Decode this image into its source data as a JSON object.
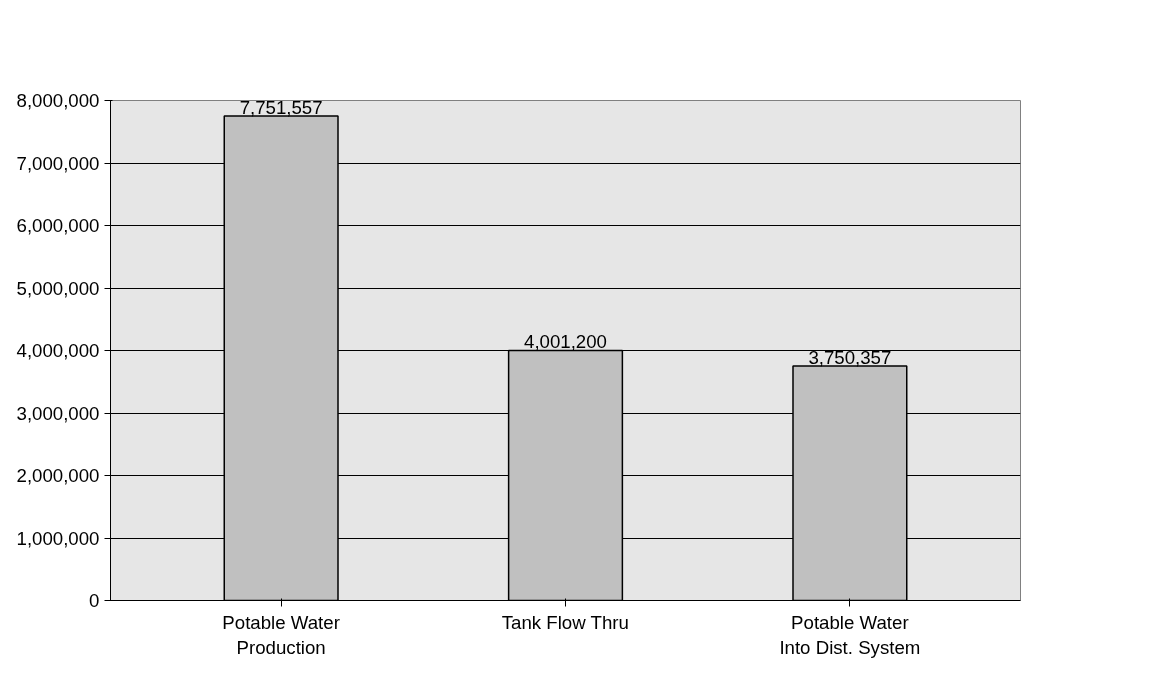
{
  "chart_data": {
    "type": "bar",
    "categories": [
      "Potable Water\nProduction",
      "Tank Flow Thru",
      "Potable Water\nInto Dist. System"
    ],
    "values": [
      7751557,
      4001200,
      3750357
    ],
    "value_labels": [
      "7,751,557",
      "4,001,200",
      "3,750,357"
    ],
    "color": "#c0c0c0",
    "ylim": [
      0,
      8000000
    ],
    "yticks": [
      0,
      {
        "value": 1000000,
        "label": "1,000,000"
      },
      {
        "value": 2000000,
        "label": "2,000,000"
      },
      {
        "value": 3000000,
        "label": "3,000,000"
      },
      {
        "value": 4000000,
        "label": "4,000,000"
      },
      {
        "value": 5000000,
        "label": "5,000,000"
      },
      {
        "value": 6000000,
        "label": "6,000,000"
      },
      {
        "value": 7000000,
        "label": "7,000,000"
      },
      {
        "value": 8000000,
        "label": "8,000,000"
      }
    ],
    "grid": "y"
  }
}
